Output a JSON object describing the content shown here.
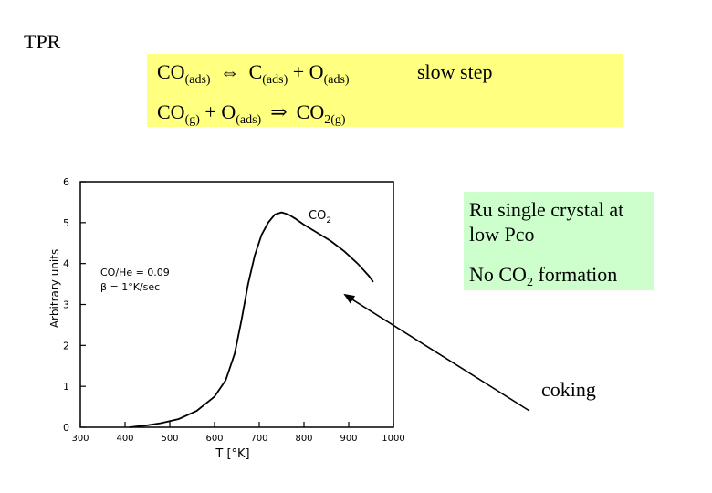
{
  "slide": {
    "title": "TPR",
    "equations": {
      "eq1": {
        "co": "CO",
        "co_sub": "(ads)",
        "arrow": "⇔",
        "c": "C",
        "c_sub": "(ads)",
        "plus": "+",
        "o": "O",
        "o_sub": "(ads)"
      },
      "eq2": {
        "co": "CO",
        "co_sub": "(g)",
        "plus": "+",
        "o": "O",
        "o_sub": "(ads)",
        "arrow": "⇒",
        "co2": "CO",
        "co2_sub": "2(g)"
      },
      "slow_step": "slow step"
    },
    "info": {
      "line1": "Ru single crystal at low Pco",
      "line2_pre": "No CO",
      "line2_sub": "2",
      "line2_post": " formation"
    },
    "coking_label": "coking",
    "colors": {
      "equation_box": "#ffff80",
      "info_box": "#ccffcc"
    }
  },
  "chart_data": {
    "type": "line",
    "xlabel": "T [°K]",
    "ylabel": "Arbitrary units",
    "xlim": [
      300,
      1000
    ],
    "ylim": [
      0,
      6
    ],
    "xticks": [
      300,
      400,
      500,
      600,
      700,
      800,
      900,
      1000
    ],
    "yticks": [
      0,
      1,
      2,
      3,
      4,
      5,
      6
    ],
    "annotations": [
      "CO/He = 0.09",
      "β = 1°K/sec"
    ],
    "series": [
      {
        "name": "CO2",
        "x": [
          410,
          450,
          480,
          520,
          560,
          600,
          625,
          645,
          660,
          675,
          690,
          705,
          720,
          735,
          750,
          765,
          780,
          800,
          830,
          860,
          890,
          920,
          945,
          955
        ],
        "y": [
          0.0,
          0.05,
          0.1,
          0.2,
          0.4,
          0.75,
          1.15,
          1.8,
          2.6,
          3.5,
          4.2,
          4.7,
          5.0,
          5.2,
          5.25,
          5.2,
          5.1,
          4.95,
          4.75,
          4.55,
          4.3,
          4.0,
          3.7,
          3.55
        ]
      }
    ]
  }
}
